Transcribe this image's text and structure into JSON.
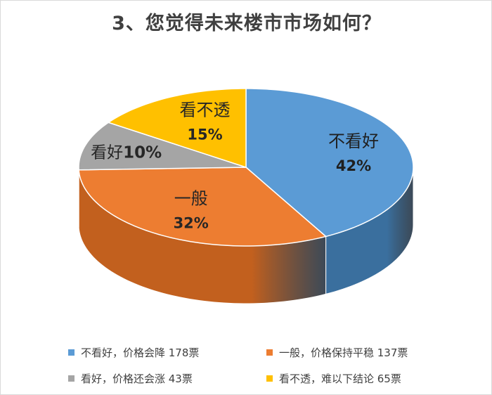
{
  "title": "3、您觉得未来楼市市场如何？",
  "chart_data": {
    "type": "pie",
    "title": "3、您觉得未来楼市市场如何？",
    "slices": [
      {
        "label": "不看好",
        "percent_label": "42%",
        "value": 178,
        "color": "#5B9BD5",
        "side_color": "#3A6F9E",
        "label_color": "#1f1f1f"
      },
      {
        "label": "一般",
        "percent_label": "32%",
        "value": 137,
        "color": "#ED7D31",
        "side_color": "#C2601E",
        "label_color": "#262626"
      },
      {
        "label": "看好",
        "percent_label": "10%",
        "value": 43,
        "color": "#A5A5A5",
        "side_color": "#7F7F7F",
        "label_color": "#262626"
      },
      {
        "label": "看不透",
        "percent_label": "15%",
        "value": 65,
        "color": "#FFC000",
        "side_color": "#C99700",
        "label_color": "#262626"
      }
    ],
    "legend": [
      {
        "text": "不看好，价格会降 178票",
        "color": "#5B9BD5"
      },
      {
        "text": "一般，价格保持平稳 137票",
        "color": "#ED7D31"
      },
      {
        "text": "看好，价格还会涨 43票",
        "color": "#A5A5A5"
      },
      {
        "text": "看不透，难以下结论 65票",
        "color": "#FFC000"
      }
    ],
    "legend_position": "bottom"
  }
}
